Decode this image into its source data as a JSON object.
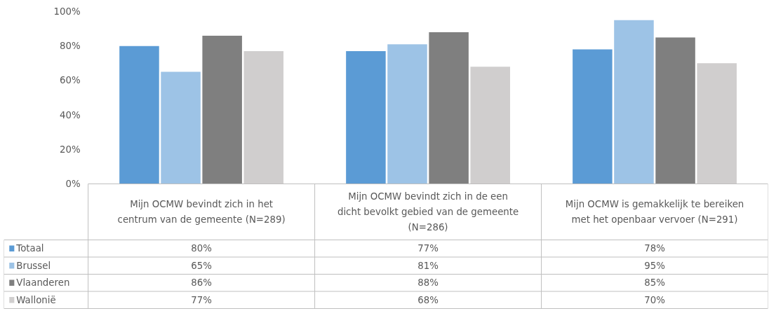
{
  "chart_data": {
    "type": "bar",
    "categories": [
      "Mijn OCMW bevindt zich in het centrum van de gemeente (N=289)",
      "Mijn OCMW bevindt zich in de een dicht bevolkt gebied van de gemeente (N=286)",
      "Mijn OCMW is gemakkelijk te bereiken met het openbaar vervoer (N=291)"
    ],
    "series": [
      {
        "name": "Totaal",
        "color": "#5b9bd5",
        "values": [
          80,
          77,
          78
        ],
        "value_labels": [
          "80%",
          "77%",
          "78%"
        ]
      },
      {
        "name": "Brussel",
        "color": "#9dc3e6",
        "values": [
          65,
          81,
          95
        ],
        "value_labels": [
          "65%",
          "81%",
          "95%"
        ]
      },
      {
        "name": "Vlaanderen",
        "color": "#7f7f7f",
        "values": [
          86,
          88,
          85
        ],
        "value_labels": [
          "86%",
          "88%",
          "85%"
        ]
      },
      {
        "name": "Wallonië",
        "color": "#d0cece",
        "values": [
          77,
          68,
          70
        ],
        "value_labels": [
          "77%",
          "68%",
          "70%"
        ]
      }
    ],
    "ylim": [
      0,
      100
    ],
    "yticks": [
      {
        "value": 0,
        "label": "0%"
      },
      {
        "value": 20,
        "label": "20%"
      },
      {
        "value": 40,
        "label": "40%"
      },
      {
        "value": 60,
        "label": "60%"
      },
      {
        "value": 80,
        "label": "80%"
      },
      {
        "value": 100,
        "label": "100%"
      }
    ],
    "legend": "bottom"
  }
}
